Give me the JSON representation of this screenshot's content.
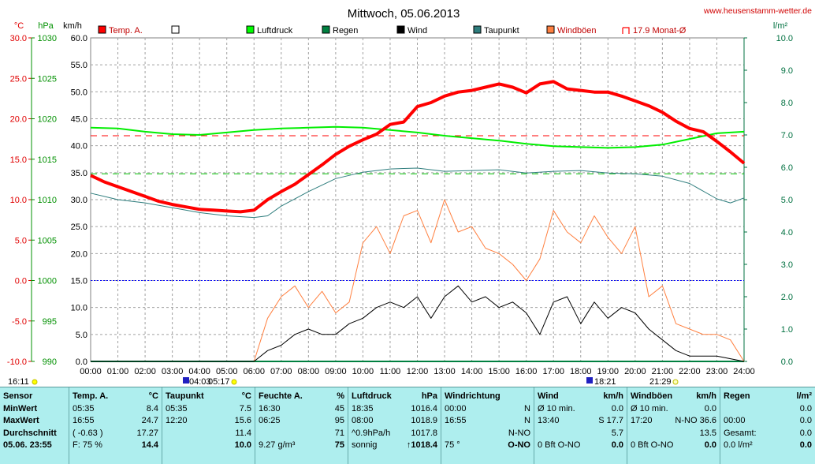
{
  "title": "Mittwoch, 05.06.2013",
  "website": "www.heusenstamm-wetter.de",
  "axis_units": {
    "temp": "°C",
    "press": "hPa",
    "wind": "km/h",
    "rain": "l/m²"
  },
  "legend": [
    {
      "label": "Temp. A.",
      "color": "#ff0000"
    },
    {
      "label": "",
      "color": "#ffffff"
    },
    {
      "label": "Luftdruck",
      "color": "#00ff00"
    },
    {
      "label": "Regen",
      "color": "#008040"
    },
    {
      "label": "Wind",
      "color": "#000000"
    },
    {
      "label": "Taupunkt",
      "color": "#2e7d7d"
    },
    {
      "label": "Windböen",
      "color": "#ff8040"
    },
    {
      "label": "17.9 Monat-Ø",
      "color": "#ff0000"
    }
  ],
  "sun_moon": {
    "sunrise_left": "16:11",
    "sun_marks": [
      "04:03",
      "05:17"
    ],
    "sunset_marks": [
      "18:21",
      "21:29"
    ]
  },
  "colors": {
    "temp": "#ff0000",
    "press": "#00ee00",
    "dew": "#2e7d7d",
    "wind": "#000000",
    "gust": "#ff8040",
    "rain": "#008040",
    "stats_bg": "#aeeeee",
    "grid": "#a0a0a0",
    "avg_line": "#0000ff"
  },
  "chart_data": {
    "type": "line",
    "x_ticks": [
      "00:00",
      "01:00",
      "02:00",
      "03:00",
      "04:00",
      "05:00",
      "06:00",
      "07:00",
      "08:00",
      "09:00",
      "10:00",
      "11:00",
      "12:00",
      "13:00",
      "14:00",
      "15:00",
      "16:00",
      "17:00",
      "18:00",
      "19:00",
      "20:00",
      "21:00",
      "22:00",
      "23:00",
      "24:00"
    ],
    "axes": {
      "temp": {
        "label": "°C",
        "min": -10,
        "max": 30,
        "ticks": [
          "30.0",
          "25.0",
          "20.0",
          "15.0",
          "10.0",
          "5.0",
          "0.0",
          "-5.0",
          "-10.0"
        ]
      },
      "press": {
        "label": "hPa",
        "min": 990,
        "max": 1030,
        "ticks": [
          "1030",
          "1025",
          "1020",
          "1015",
          "1010",
          "1005",
          "1000",
          "995",
          "990"
        ]
      },
      "wind": {
        "label": "km/h",
        "min": 0,
        "max": 60,
        "ticks": [
          "60.0",
          "55.0",
          "50.0",
          "45.0",
          "40.0",
          "35.0",
          "30.0",
          "25.0",
          "20.0",
          "15.0",
          "10.0",
          "5.0",
          "0.0"
        ]
      },
      "rain": {
        "label": "l/m²",
        "min": 0,
        "max": 10,
        "ticks": [
          "10.0",
          "9.0",
          "8.0",
          "7.0",
          "6.0",
          "5.0",
          "4.0",
          "3.0",
          "2.0",
          "1.0",
          "0.0"
        ]
      }
    },
    "monthly_avg_temp": 17.9,
    "pressure_ref": 1013.2,
    "wind_ref_kmh": 15.0,
    "series": [
      {
        "name": "Temp. A.",
        "axis": "temp",
        "x": [
          0,
          0.5,
          1,
          1.5,
          2,
          2.5,
          3,
          3.5,
          4,
          4.5,
          5,
          5.5,
          6,
          6.5,
          7,
          7.5,
          8,
          8.5,
          9,
          9.5,
          10,
          10.5,
          11,
          11.5,
          12,
          12.5,
          13,
          13.5,
          14,
          14.5,
          15,
          15.5,
          16,
          16.5,
          17,
          17.5,
          18,
          18.5,
          19,
          19.5,
          20,
          20.5,
          21,
          21.5,
          22,
          22.5,
          23,
          23.5,
          24
        ],
        "y": [
          13.0,
          12.2,
          11.6,
          11.0,
          10.4,
          9.8,
          9.4,
          9.1,
          8.8,
          8.7,
          8.6,
          8.5,
          8.7,
          10.0,
          11.0,
          11.9,
          13.1,
          14.3,
          15.6,
          16.6,
          17.4,
          18.1,
          19.3,
          19.6,
          21.5,
          22.0,
          22.8,
          23.3,
          23.5,
          23.9,
          24.3,
          23.9,
          23.2,
          24.3,
          24.6,
          23.7,
          23.5,
          23.3,
          23.3,
          22.8,
          22.2,
          21.6,
          20.8,
          19.7,
          18.8,
          18.4,
          17.2,
          15.9,
          14.5
        ]
      },
      {
        "name": "Luftdruck",
        "axis": "press",
        "x": [
          0,
          1,
          2,
          3,
          4,
          5,
          6,
          7,
          8,
          9,
          10,
          11,
          12,
          13,
          14,
          15,
          16,
          17,
          18,
          19,
          20,
          21,
          22,
          23,
          24
        ],
        "y": [
          1018.9,
          1018.8,
          1018.4,
          1018.1,
          1018.0,
          1018.3,
          1018.6,
          1018.8,
          1018.9,
          1019.0,
          1018.9,
          1018.6,
          1018.3,
          1017.9,
          1017.6,
          1017.3,
          1016.9,
          1016.6,
          1016.5,
          1016.4,
          1016.5,
          1016.8,
          1017.5,
          1018.2,
          1018.4
        ]
      },
      {
        "name": "Taupunkt",
        "axis": "temp",
        "x": [
          0,
          1,
          2,
          3,
          4,
          5,
          6,
          6.5,
          7,
          8,
          9,
          10,
          11,
          12,
          13,
          14,
          15,
          16,
          17,
          18,
          19,
          20,
          21,
          22,
          23,
          23.5,
          24
        ],
        "y": [
          10.8,
          10.0,
          9.6,
          9.0,
          8.4,
          8.0,
          7.8,
          8.0,
          9.2,
          11.0,
          12.6,
          13.4,
          13.8,
          13.9,
          13.5,
          13.6,
          13.7,
          13.3,
          13.5,
          13.6,
          13.3,
          13.2,
          12.9,
          12.0,
          10.1,
          9.6,
          10.2
        ]
      },
      {
        "name": "Wind",
        "axis": "wind",
        "x": [
          0,
          1,
          2,
          3,
          4,
          5,
          6,
          6.5,
          7,
          7.5,
          8,
          8.5,
          9,
          9.5,
          10,
          10.5,
          11,
          11.5,
          12,
          12.5,
          13,
          13.5,
          14,
          14.5,
          15,
          15.5,
          16,
          16.5,
          17,
          17.5,
          18,
          18.5,
          19,
          19.5,
          20,
          20.5,
          21,
          21.5,
          22,
          22.5,
          23,
          23.5,
          24
        ],
        "y": [
          0,
          0,
          0,
          0,
          0,
          0,
          0,
          2,
          3,
          5,
          6,
          5,
          5,
          7,
          8,
          10,
          11,
          10,
          12,
          8,
          12,
          14,
          11,
          12,
          10,
          11,
          9,
          5,
          11,
          12,
          7,
          11,
          8,
          10,
          9,
          6,
          4,
          2,
          1,
          1,
          1,
          0.5,
          0
        ]
      },
      {
        "name": "Windböen",
        "axis": "wind",
        "x": [
          0,
          1,
          2,
          3,
          4,
          5,
          6,
          6.5,
          7,
          7.5,
          8,
          8.5,
          9,
          9.5,
          10,
          10.5,
          11,
          11.5,
          12,
          12.5,
          13,
          13.5,
          14,
          14.5,
          15,
          15.5,
          16,
          16.5,
          17,
          17.5,
          18,
          18.5,
          19,
          19.5,
          20,
          20.5,
          21,
          21.5,
          22,
          22.5,
          23,
          23.5,
          24
        ],
        "y": [
          0,
          0,
          0,
          0,
          0,
          0,
          0,
          8,
          12,
          14,
          10,
          13,
          9,
          11,
          22,
          25,
          20,
          27,
          28,
          22,
          30,
          24,
          25,
          21,
          20,
          18,
          15,
          19,
          28,
          24,
          22,
          27,
          23,
          20,
          25,
          12,
          14,
          7,
          6,
          5,
          5,
          4,
          0
        ]
      },
      {
        "name": "Regen",
        "axis": "rain",
        "x": [
          0,
          24
        ],
        "y": [
          0,
          0
        ]
      }
    ]
  },
  "stats": {
    "sensor": {
      "header": "Sensor",
      "rows": [
        "MinWert",
        "MaxWert",
        "Durchschnitt",
        "05.06.  23:55"
      ]
    },
    "temp": {
      "header": "Temp. A.",
      "unit": "°C",
      "rows": [
        [
          "05:35",
          "8.4"
        ],
        [
          "16:55",
          "24.7"
        ],
        [
          "( -0.63 )",
          "17.27"
        ],
        [
          "F: 75 %",
          "14.4"
        ]
      ]
    },
    "dew": {
      "header": "Taupunkt",
      "unit": "°C",
      "rows": [
        [
          "05:35",
          "7.5"
        ],
        [
          "12:20",
          "15.6"
        ],
        [
          "",
          "11.4"
        ],
        [
          "",
          "10.0"
        ]
      ]
    },
    "hum": {
      "header": "Feuchte A.",
      "unit": "%",
      "rows": [
        [
          "16:30",
          "45"
        ],
        [
          "06:25",
          "95"
        ],
        [
          "",
          "71"
        ],
        [
          "9.27 g/m³",
          "75"
        ]
      ]
    },
    "press": {
      "header": "Luftdruck",
      "unit": "hPa",
      "rows": [
        [
          "18:35",
          "1016.4"
        ],
        [
          "08:00",
          "1018.9"
        ],
        [
          "^0.9hPa/h",
          "1017.8"
        ],
        [
          "sonnig",
          "↑1018.4"
        ]
      ]
    },
    "winddir": {
      "header": "Windrichtung",
      "unit": "",
      "rows": [
        [
          "00:00",
          "N"
        ],
        [
          "16:55",
          "N"
        ],
        [
          "",
          "N-NO"
        ],
        [
          "75 °",
          "O-NO"
        ]
      ]
    },
    "wind": {
      "header": "Wind",
      "unit": "km/h",
      "rows": [
        [
          "Ø 10 min.",
          "0.0"
        ],
        [
          "13:40",
          "S 17.7"
        ],
        [
          "",
          "5.7"
        ],
        [
          "0 Bft O-NO",
          "0.0"
        ]
      ]
    },
    "gust": {
      "header": "Windböen",
      "unit": "km/h",
      "rows": [
        [
          "Ø 10 min.",
          "0.0"
        ],
        [
          "17:20",
          "N-NO 36.6"
        ],
        [
          "",
          "13.5"
        ],
        [
          "0 Bft O-NO",
          "0.0"
        ]
      ]
    },
    "rain": {
      "header": "Regen",
      "unit": "l/m²",
      "rows": [
        [
          "",
          "0.0"
        ],
        [
          "00:00",
          "0.0"
        ],
        [
          "Gesamt:",
          "0.0"
        ],
        [
          "0.0 l/m²",
          "0.0"
        ]
      ]
    }
  }
}
